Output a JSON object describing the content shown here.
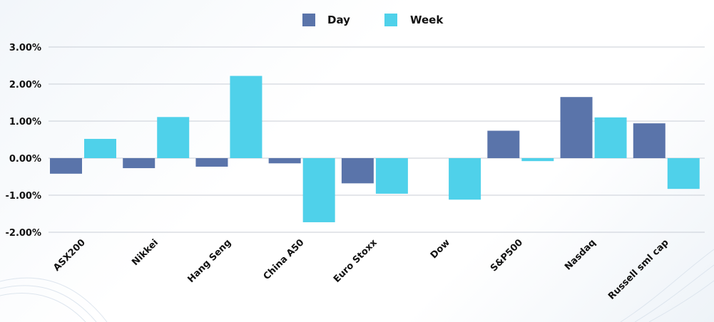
{
  "chart_data": {
    "type": "bar",
    "title": "",
    "xlabel": "",
    "ylabel": "",
    "categories": [
      "ASX200",
      "Nikkei",
      "Hang Seng",
      "China A50",
      "Euro Stoxx",
      "Dow",
      "S&P500",
      "Nasdaq",
      "Russell sml cap"
    ],
    "series": [
      {
        "name": "Day",
        "color": "#5a74aa",
        "values": [
          -0.42,
          -0.27,
          -0.23,
          -0.14,
          -0.68,
          0.0,
          0.74,
          1.65,
          0.94
        ]
      },
      {
        "name": "Week",
        "color": "#4fd1ea",
        "values": [
          0.52,
          1.11,
          2.22,
          -1.73,
          -0.96,
          -1.12,
          -0.08,
          1.1,
          -0.83
        ]
      }
    ],
    "ylim": [
      -2.0,
      3.0
    ],
    "yticks": [
      3.0,
      2.0,
      1.0,
      0.0,
      -1.0,
      -2.0
    ],
    "ytick_labels": [
      "3.00%",
      "2.00%",
      "1.00%",
      "0.00%",
      "-1.00%",
      "-2.00%"
    ],
    "grid": true,
    "legend_position": "top-center"
  }
}
